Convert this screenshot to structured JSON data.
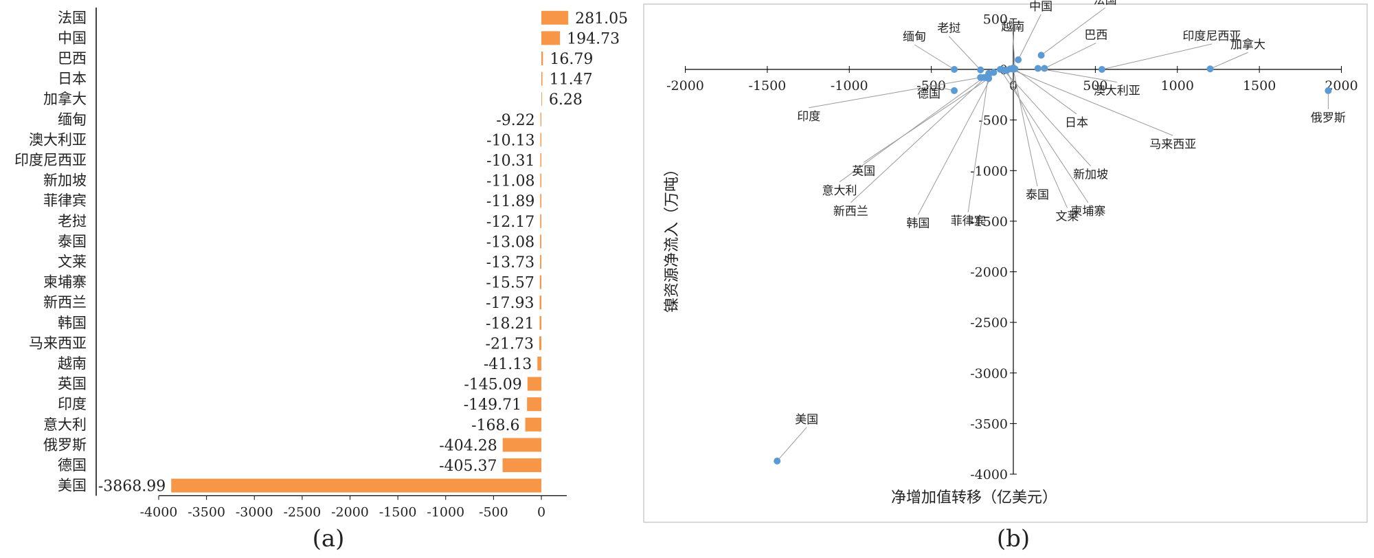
{
  "colors": {
    "bar": "#f79646",
    "point": "#5b9bd5",
    "leader": "#9a9a9a",
    "frame": "#bfbfbf",
    "axis": "#000000"
  },
  "panels": {
    "a_label": "(a)",
    "b_label": "(b)"
  },
  "chart_data": [
    {
      "type": "bar",
      "orientation": "horizontal",
      "categories": [
        "法国",
        "中国",
        "巴西",
        "日本",
        "加拿大",
        "缅甸",
        "澳大利亚",
        "印度尼西亚",
        "新加坡",
        "菲律宾",
        "老挝",
        "泰国",
        "文莱",
        "柬埔寨",
        "新西兰",
        "韩国",
        "马来西亚",
        "越南",
        "英国",
        "印度",
        "意大利",
        "俄罗斯",
        "德国",
        "美国"
      ],
      "values": [
        281.05,
        194.73,
        16.79,
        11.47,
        6.28,
        -9.22,
        -10.13,
        -10.31,
        -11.08,
        -11.89,
        -12.17,
        -13.08,
        -13.73,
        -15.57,
        -17.93,
        -18.21,
        -21.73,
        -41.13,
        -145.09,
        -149.71,
        -168.6,
        -404.28,
        -405.37,
        -3868.99
      ],
      "value_labels": [
        "281.05",
        "194.73",
        "16.79",
        "11.47",
        "6.28",
        "-9.22",
        "-10.13",
        "-10.31",
        "-11.08",
        "-11.89",
        "-12.17",
        "-13.08",
        "-13.73",
        "-15.57",
        "-17.93",
        "-18.21",
        "-21.73",
        "-41.13",
        "-145.09",
        "-149.71",
        "-168.6",
        "-404.28",
        "-405.37",
        "-3868.99"
      ],
      "xlim": [
        -4000,
        300
      ],
      "xticks": [
        -4000,
        -3500,
        -3000,
        -2500,
        -2000,
        -1500,
        -1000,
        -500,
        0
      ],
      "xtick_labels": [
        "-4000",
        "-3500",
        "-3000",
        "-2500",
        "-2000",
        "-1500",
        "-1000",
        "-500",
        "0"
      ],
      "title": "",
      "xlabel": "",
      "ylabel": "",
      "grid": false
    },
    {
      "type": "scatter",
      "xlabel": "净增加值转移（亿美元）",
      "ylabel": "镍资源净流入（万吨）",
      "xlim": [
        -2000,
        2000
      ],
      "ylim": [
        -4000,
        500
      ],
      "xticks": [
        -2000,
        -1500,
        -1000,
        -500,
        0,
        500,
        1000,
        1500,
        2000
      ],
      "xtick_labels": [
        "-2000",
        "-1500",
        "-1000",
        "-500",
        "0",
        "500",
        "1000",
        "1500",
        "2000"
      ],
      "yticks": [
        500,
        0,
        -500,
        -1000,
        -1500,
        -2000,
        -2500,
        -3000,
        -3500,
        -4000
      ],
      "ytick_labels": [
        "500",
        "0",
        "-500",
        "-1000",
        "-1500",
        "-2000",
        "-2500",
        "-3000",
        "-3500",
        "-4000"
      ],
      "grid": false,
      "points": [
        {
          "name": "法国",
          "x": 170,
          "y": 140
        },
        {
          "name": "中国",
          "x": 30,
          "y": 95
        },
        {
          "name": "巴西",
          "x": 190,
          "y": 10
        },
        {
          "name": "印度尼西亚",
          "x": 540,
          "y": 0
        },
        {
          "name": "加拿大",
          "x": 1200,
          "y": 5
        },
        {
          "name": "越南",
          "x": 10,
          "y": 5
        },
        {
          "name": "老挝",
          "x": -200,
          "y": -5
        },
        {
          "name": "缅甸",
          "x": -360,
          "y": 0
        },
        {
          "name": "澳大利亚",
          "x": 150,
          "y": 10
        },
        {
          "name": "日本",
          "x": 0,
          "y": 15
        },
        {
          "name": "马来西亚",
          "x": -20,
          "y": 5
        },
        {
          "name": "新加坡",
          "x": -60,
          "y": -5
        },
        {
          "name": "泰国",
          "x": 0,
          "y": 0
        },
        {
          "name": "文莱",
          "x": -40,
          "y": -10
        },
        {
          "name": "柬埔寨",
          "x": -80,
          "y": 0
        },
        {
          "name": "菲律宾",
          "x": -150,
          "y": -40
        },
        {
          "name": "韩国",
          "x": -120,
          "y": -30
        },
        {
          "name": "新西兰",
          "x": -170,
          "y": -80
        },
        {
          "name": "意大利",
          "x": -180,
          "y": -80
        },
        {
          "name": "英国",
          "x": -150,
          "y": -90
        },
        {
          "name": "印度",
          "x": -200,
          "y": -80
        },
        {
          "name": "德国",
          "x": -360,
          "y": -210
        },
        {
          "name": "俄罗斯",
          "x": 1920,
          "y": -210
        },
        {
          "name": "美国",
          "x": -1440,
          "y": -3870
        }
      ]
    }
  ]
}
